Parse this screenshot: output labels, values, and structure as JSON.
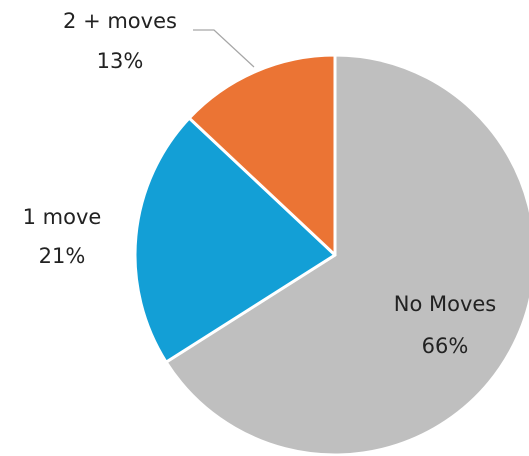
{
  "chart_data": {
    "type": "pie",
    "categories": [
      "No Moves",
      "1 move",
      "2 + moves"
    ],
    "values": [
      66,
      21,
      13
    ],
    "value_labels": [
      "66%",
      "21%",
      "13%"
    ],
    "colors": [
      "#bfbfbf",
      "#139fd6",
      "#eb7434"
    ]
  }
}
